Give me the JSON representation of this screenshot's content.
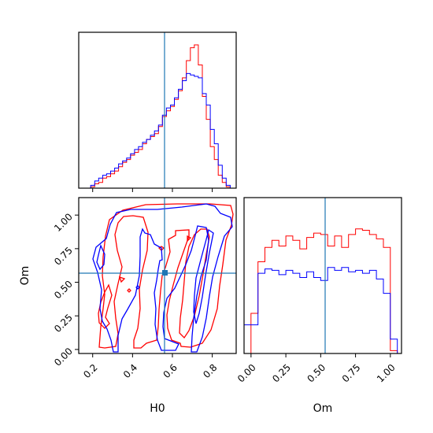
{
  "chart_data": {
    "type": "corner",
    "parameters": [
      "H0",
      "Om"
    ],
    "truth": {
      "H0": 0.58,
      "Om": 0.56
    },
    "colors": {
      "red_run": "#ff0000",
      "blue_run": "#0000ff",
      "truth": "#1f77b4"
    },
    "panels": [
      {
        "panel": "H0-marginal",
        "type": "histogram",
        "x_range": [
          0.13,
          0.92
        ],
        "bin_edges": [
          0.13,
          0.15,
          0.17,
          0.19,
          0.21,
          0.23,
          0.25,
          0.27,
          0.29,
          0.31,
          0.33,
          0.35,
          0.37,
          0.39,
          0.41,
          0.43,
          0.45,
          0.47,
          0.49,
          0.51,
          0.53,
          0.55,
          0.57,
          0.59,
          0.61,
          0.63,
          0.65,
          0.67,
          0.69,
          0.71,
          0.73,
          0.75,
          0.77,
          0.79,
          0.81,
          0.83,
          0.85,
          0.87,
          0.89,
          0.91
        ],
        "series": [
          {
            "color": "red",
            "values": [
              0,
              0,
              0,
              0.01,
              0.03,
              0.04,
              0.07,
              0.08,
              0.1,
              0.12,
              0.15,
              0.18,
              0.2,
              0.23,
              0.25,
              0.27,
              0.31,
              0.34,
              0.36,
              0.38,
              0.43,
              0.5,
              0.54,
              0.57,
              0.62,
              0.68,
              0.77,
              0.89,
              0.98,
              1.0,
              0.86,
              0.64,
              0.48,
              0.29,
              0.2,
              0.09,
              0.04,
              0.01,
              0
            ]
          },
          {
            "color": "blue",
            "values": [
              0,
              0,
              0,
              0.02,
              0.05,
              0.07,
              0.09,
              0.1,
              0.12,
              0.14,
              0.17,
              0.19,
              0.21,
              0.24,
              0.27,
              0.29,
              0.32,
              0.34,
              0.37,
              0.4,
              0.44,
              0.51,
              0.56,
              0.58,
              0.63,
              0.69,
              0.75,
              0.8,
              0.79,
              0.78,
              0.77,
              0.66,
              0.58,
              0.41,
              0.31,
              0.16,
              0.07,
              0.02,
              0
            ]
          }
        ]
      },
      {
        "panel": "H0-Om-joint",
        "type": "contour",
        "x_range": [
          0.13,
          0.92
        ],
        "y_range": [
          -0.03,
          1.13
        ]
      },
      {
        "panel": "Om-marginal",
        "type": "histogram",
        "x_range": [
          -0.05,
          1.08
        ],
        "bin_edges": [
          -0.05,
          0.0,
          0.05,
          0.1,
          0.15,
          0.2,
          0.25,
          0.3,
          0.35,
          0.4,
          0.45,
          0.5,
          0.55,
          0.6,
          0.65,
          0.7,
          0.75,
          0.8,
          0.85,
          0.9,
          0.95,
          1.0,
          1.05
        ],
        "series": [
          {
            "color": "red",
            "values": [
              0,
              0.28,
              0.64,
              0.74,
              0.79,
              0.75,
              0.82,
              0.79,
              0.73,
              0.81,
              0.84,
              0.83,
              0.75,
              0.82,
              0.74,
              0.83,
              0.87,
              0.86,
              0.83,
              0.8,
              0.74,
              0.02
            ]
          },
          {
            "color": "blue",
            "values": [
              0.2,
              0.2,
              0.56,
              0.59,
              0.58,
              0.55,
              0.58,
              0.56,
              0.53,
              0.57,
              0.53,
              0.51,
              0.6,
              0.58,
              0.6,
              0.57,
              0.58,
              0.56,
              0.58,
              0.52,
              0.42,
              0.1
            ]
          }
        ]
      }
    ],
    "xlabels": {
      "H0": "H0",
      "Om": "Om"
    },
    "ylabel_joint": "Om",
    "ticks": {
      "H0": [
        "0.2",
        "0.4",
        "0.6",
        "0.8"
      ],
      "Om_joint_y": [
        "0.00",
        "0.25",
        "0.50",
        "0.75",
        "1.00"
      ],
      "Om_x": [
        "0.00",
        "0.25",
        "0.50",
        "0.75",
        "1.00"
      ]
    }
  }
}
